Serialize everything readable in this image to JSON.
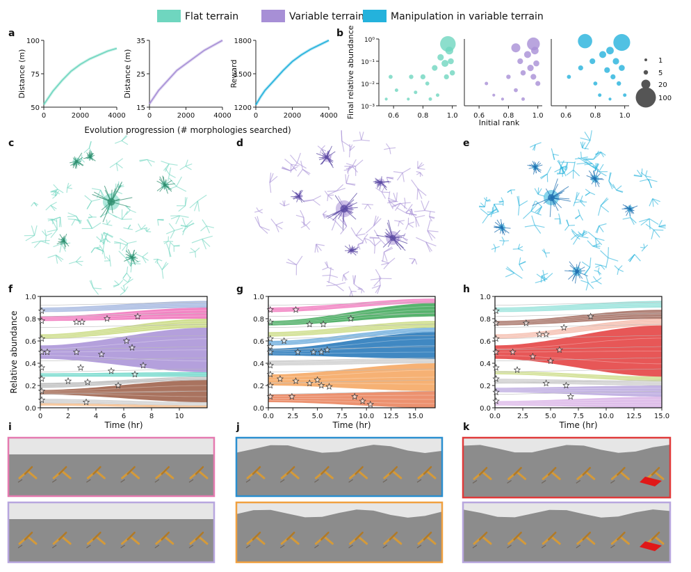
{
  "legend": {
    "items": [
      {
        "label": "Flat terrain",
        "color": "#6fd6bf"
      },
      {
        "label": "Variable terrain",
        "color": "#a78fd6"
      },
      {
        "label": "Manipulation in variable terrain",
        "color": "#24b2dc"
      }
    ]
  },
  "panel_letters": {
    "a": "a",
    "b": "b",
    "c": "c",
    "d": "d",
    "e": "e",
    "f": "f",
    "g": "g",
    "h": "h",
    "i": "i",
    "j": "j",
    "k": "k"
  },
  "colors": {
    "flat": "#6fd6bf",
    "variable": "#a78fd6",
    "manip": "#24b2dc",
    "tree_flat": "#2f8f6f",
    "tree_var": "#5b4aa3",
    "tree_manip": "#1f6fb0",
    "floor": "#8c8c8c",
    "sky": "#e6e6e6",
    "creature": "#d49a3a"
  },
  "chart_data": [
    {
      "id": "a1",
      "type": "line",
      "ylabel": "Distance (m)",
      "xlabel": "",
      "ylim": [
        50,
        100
      ],
      "yticks": [
        "50",
        "75",
        "100"
      ],
      "xticks": [
        "0",
        "2000",
        "4000"
      ],
      "xlim": [
        0,
        4000
      ],
      "x": [
        0,
        250,
        500,
        1000,
        1500,
        2000,
        2500,
        3000,
        3500,
        4000
      ],
      "values": [
        52,
        57,
        62,
        70,
        77,
        82,
        86,
        89,
        92,
        94
      ]
    },
    {
      "id": "a2",
      "type": "line",
      "ylabel": "Distance (m)",
      "xlabel": "",
      "ylim": [
        15,
        35
      ],
      "yticks": [
        "15",
        "25",
        "35"
      ],
      "xticks": [
        "0",
        "2000",
        "4000"
      ],
      "xlim": [
        0,
        4000
      ],
      "x": [
        0,
        250,
        500,
        1000,
        1500,
        2000,
        2500,
        3000,
        3500,
        4000
      ],
      "values": [
        16,
        18,
        20,
        23,
        26,
        28,
        30,
        32,
        33.5,
        35
      ]
    },
    {
      "id": "a3",
      "type": "line",
      "ylabel": "Reward",
      "xlabel": "",
      "ylim": [
        1200,
        1800
      ],
      "yticks": [
        "1200",
        "1500",
        "1800"
      ],
      "xticks": [
        "0",
        "2000",
        "4000"
      ],
      "xlim": [
        0,
        4000
      ],
      "x": [
        0,
        250,
        500,
        1000,
        1500,
        2000,
        2500,
        3000,
        3500,
        4000
      ],
      "values": [
        1220,
        1290,
        1350,
        1440,
        1530,
        1610,
        1670,
        1720,
        1760,
        1800
      ]
    },
    {
      "id": "a_xlabel",
      "type": "label",
      "text": "Evolution progression (# morphologies searched)"
    },
    {
      "id": "b",
      "type": "scatter",
      "ylabel": "Final relative abundance",
      "xlabel": "Initial rank",
      "xticks": [
        "0.6",
        "0.8",
        "1.0"
      ],
      "yticks": [
        "10⁰",
        "10⁻¹",
        "10⁻²",
        "10⁻³"
      ],
      "xlim": [
        0.5,
        1.03
      ],
      "ylim_log": [
        -3,
        0
      ],
      "size_legend": {
        "values": [
          1,
          5,
          20,
          100
        ],
        "labels": [
          "1",
          "5",
          "20",
          "100"
        ]
      },
      "series": [
        {
          "name": "Flat terrain",
          "points": [
            [
              0.97,
              0.6,
              60
            ],
            [
              0.58,
              0.02,
              4
            ],
            [
              0.62,
              0.005,
              3
            ],
            [
              0.72,
              0.02,
              5
            ],
            [
              0.75,
              0.004,
              3
            ],
            [
              0.8,
              0.02,
              6
            ],
            [
              0.83,
              0.01,
              4
            ],
            [
              0.88,
              0.05,
              8
            ],
            [
              0.9,
              0.003,
              3
            ],
            [
              0.92,
              0.15,
              10
            ],
            [
              0.95,
              0.08,
              12
            ],
            [
              0.96,
              0.02,
              6
            ],
            [
              0.98,
              0.3,
              15
            ],
            [
              0.99,
              0.1,
              9
            ],
            [
              1.0,
              0.03,
              7
            ],
            [
              0.55,
              0.002,
              2
            ],
            [
              0.7,
              0.002,
              2
            ],
            [
              0.85,
              0.002,
              3
            ]
          ]
        },
        {
          "name": "Variable terrain",
          "points": [
            [
              0.97,
              0.6,
              40
            ],
            [
              0.85,
              0.4,
              20
            ],
            [
              0.65,
              0.01,
              3
            ],
            [
              0.7,
              0.003,
              2
            ],
            [
              0.8,
              0.02,
              5
            ],
            [
              0.85,
              0.005,
              4
            ],
            [
              0.88,
              0.1,
              8
            ],
            [
              0.9,
              0.03,
              7
            ],
            [
              0.93,
              0.2,
              12
            ],
            [
              0.95,
              0.05,
              10
            ],
            [
              0.97,
              0.02,
              8
            ],
            [
              0.98,
              0.3,
              14
            ],
            [
              0.99,
              0.08,
              9
            ],
            [
              1.0,
              0.01,
              6
            ],
            [
              0.76,
              0.002,
              2
            ],
            [
              0.9,
              0.002,
              3
            ]
          ]
        },
        {
          "name": "Manipulation in variable terrain",
          "points": [
            [
              0.73,
              0.8,
              50
            ],
            [
              0.98,
              0.7,
              70
            ],
            [
              0.62,
              0.02,
              4
            ],
            [
              0.7,
              0.05,
              6
            ],
            [
              0.78,
              0.1,
              8
            ],
            [
              0.8,
              0.01,
              4
            ],
            [
              0.85,
              0.2,
              12
            ],
            [
              0.88,
              0.04,
              8
            ],
            [
              0.9,
              0.3,
              14
            ],
            [
              0.92,
              0.02,
              6
            ],
            [
              0.94,
              0.1,
              10
            ],
            [
              0.96,
              0.01,
              5
            ],
            [
              0.98,
              0.05,
              9
            ],
            [
              1.0,
              0.003,
              3
            ],
            [
              0.83,
              0.003,
              3
            ],
            [
              0.9,
              0.002,
              2
            ]
          ]
        }
      ]
    },
    {
      "id": "f",
      "type": "area",
      "xlabel": "Time (hr)",
      "ylabel": "Relative abundance",
      "ylim": [
        0,
        1
      ],
      "xlim": [
        0,
        12
      ],
      "xticks": [
        "0",
        "2",
        "4",
        "6",
        "8",
        "10"
      ],
      "xtick_vals": [
        0,
        2,
        4,
        6,
        8,
        10
      ],
      "yticks": [
        "0.0",
        "0.2",
        "0.4",
        "0.6",
        "0.8",
        "1.0"
      ],
      "bands": [
        {
          "color": "#f5a35c",
          "start": [
            0.02,
            0.04
          ],
          "end": [
            0.0,
            0.02
          ]
        },
        {
          "color": "#c9c9c9",
          "start": [
            0.04,
            0.08
          ],
          "end": [
            0.02,
            0.05
          ]
        },
        {
          "color": "#9a5a43",
          "start": [
            0.12,
            0.16
          ],
          "end": [
            0.05,
            0.25
          ]
        },
        {
          "color": "#b9b9b9",
          "start": [
            0.18,
            0.22
          ],
          "end": [
            0.25,
            0.28
          ]
        },
        {
          "color": "#5fd3c4",
          "start": [
            0.28,
            0.31
          ],
          "end": [
            0.28,
            0.32
          ]
        },
        {
          "color": "#a78fd6",
          "start": [
            0.44,
            0.56
          ],
          "end": [
            0.32,
            0.72
          ]
        },
        {
          "color": "#c8d97c",
          "start": [
            0.62,
            0.66
          ],
          "end": [
            0.72,
            0.8
          ]
        },
        {
          "color": "#f06fb8",
          "start": [
            0.78,
            0.82
          ],
          "end": [
            0.8,
            0.9
          ]
        },
        {
          "color": "#9fb3de",
          "start": [
            0.86,
            0.9
          ],
          "end": [
            0.9,
            0.96
          ]
        }
      ],
      "stars": [
        [
          0.1,
          0.87
        ],
        [
          0.1,
          0.78
        ],
        [
          0.1,
          0.62
        ],
        [
          0.1,
          0.5
        ],
        [
          0.1,
          0.36
        ],
        [
          0.1,
          0.26
        ],
        [
          0.1,
          0.15
        ],
        [
          0.1,
          0.07
        ],
        [
          0.5,
          0.5
        ],
        [
          2.6,
          0.77
        ],
        [
          3.0,
          0.77
        ],
        [
          4.8,
          0.8
        ],
        [
          7.0,
          0.82
        ],
        [
          2.6,
          0.5
        ],
        [
          4.4,
          0.48
        ],
        [
          6.2,
          0.6
        ],
        [
          6.6,
          0.54
        ],
        [
          7.4,
          0.38
        ],
        [
          2.9,
          0.36
        ],
        [
          5.1,
          0.33
        ],
        [
          6.8,
          0.3
        ],
        [
          2.0,
          0.24
        ],
        [
          3.4,
          0.23
        ],
        [
          5.6,
          0.2
        ],
        [
          3.3,
          0.05
        ]
      ]
    },
    {
      "id": "g",
      "type": "area",
      "xlabel": "Time (hr)",
      "ylabel": "",
      "ylim": [
        0,
        1
      ],
      "xlim": [
        0,
        17
      ],
      "xticks": [
        "0.0",
        "2.5",
        "5.0",
        "7.5",
        "10.0",
        "12.5",
        "15.0"
      ],
      "xtick_vals": [
        0,
        2.5,
        5,
        7.5,
        10,
        12.5,
        15
      ],
      "yticks": [
        "0.0",
        "0.2",
        "0.4",
        "0.6",
        "0.8",
        "1.0"
      ],
      "bands": [
        {
          "color": "#e97e56",
          "start": [
            0.05,
            0.12
          ],
          "end": [
            0.0,
            0.15
          ]
        },
        {
          "color": "#f5a35c",
          "start": [
            0.2,
            0.3
          ],
          "end": [
            0.15,
            0.4
          ]
        },
        {
          "color": "#c9c9c9",
          "start": [
            0.38,
            0.42
          ],
          "end": [
            0.4,
            0.44
          ]
        },
        {
          "color": "#1f73b7",
          "start": [
            0.47,
            0.53
          ],
          "end": [
            0.44,
            0.68
          ]
        },
        {
          "color": "#5fa4d9",
          "start": [
            0.56,
            0.6
          ],
          "end": [
            0.68,
            0.72
          ]
        },
        {
          "color": "#c8d97c",
          "start": [
            0.64,
            0.68
          ],
          "end": [
            0.72,
            0.78
          ]
        },
        {
          "color": "#3aa655",
          "start": [
            0.74,
            0.78
          ],
          "end": [
            0.82,
            0.94
          ]
        },
        {
          "color": "#f06fb8",
          "start": [
            0.86,
            0.9
          ],
          "end": [
            0.94,
            0.98
          ]
        }
      ],
      "stars": [
        [
          0.2,
          0.88
        ],
        [
          0.2,
          0.77
        ],
        [
          0.2,
          0.62
        ],
        [
          0.2,
          0.55
        ],
        [
          0.2,
          0.5
        ],
        [
          0.2,
          0.38
        ],
        [
          0.2,
          0.3
        ],
        [
          0.2,
          0.2
        ],
        [
          0.2,
          0.1
        ],
        [
          2.8,
          0.88
        ],
        [
          4.2,
          0.75
        ],
        [
          5.6,
          0.75
        ],
        [
          8.4,
          0.8
        ],
        [
          1.6,
          0.6
        ],
        [
          3.0,
          0.5
        ],
        [
          4.6,
          0.5
        ],
        [
          5.4,
          0.5
        ],
        [
          6.0,
          0.52
        ],
        [
          1.2,
          0.26
        ],
        [
          2.8,
          0.24
        ],
        [
          4.2,
          0.22
        ],
        [
          5.0,
          0.25
        ],
        [
          5.4,
          0.2
        ],
        [
          6.2,
          0.19
        ],
        [
          2.4,
          0.1
        ],
        [
          8.8,
          0.1
        ],
        [
          9.6,
          0.06
        ],
        [
          10.4,
          0.03
        ]
      ]
    },
    {
      "id": "h",
      "type": "area",
      "xlabel": "Time (hr)",
      "ylabel": "",
      "ylim": [
        0,
        1
      ],
      "xlim": [
        0,
        15
      ],
      "xticks": [
        "0.0",
        "2.5",
        "5.0",
        "7.5",
        "10.0",
        "12.5",
        "15.0"
      ],
      "xtick_vals": [
        0,
        2.5,
        5,
        7.5,
        10,
        12.5,
        15
      ],
      "yticks": [
        "0.0",
        "0.2",
        "0.4",
        "0.6",
        "0.8",
        "1.0"
      ],
      "bands": [
        {
          "color": "#d9b3e6",
          "start": [
            0.02,
            0.06
          ],
          "end": [
            0.0,
            0.1
          ]
        },
        {
          "color": "#b9a6de",
          "start": [
            0.14,
            0.18
          ],
          "end": [
            0.1,
            0.2
          ]
        },
        {
          "color": "#c9c9c9",
          "start": [
            0.22,
            0.26
          ],
          "end": [
            0.2,
            0.24
          ]
        },
        {
          "color": "#c8d97c",
          "start": [
            0.3,
            0.33
          ],
          "end": [
            0.24,
            0.28
          ]
        },
        {
          "color": "#e33a3a",
          "start": [
            0.44,
            0.56
          ],
          "end": [
            0.28,
            0.74
          ]
        },
        {
          "color": "#f5b8a8",
          "start": [
            0.62,
            0.66
          ],
          "end": [
            0.74,
            0.8
          ]
        },
        {
          "color": "#a0675a",
          "start": [
            0.74,
            0.78
          ],
          "end": [
            0.8,
            0.88
          ]
        },
        {
          "color": "#8fe0d8",
          "start": [
            0.86,
            0.9
          ],
          "end": [
            0.9,
            0.96
          ]
        }
      ],
      "stars": [
        [
          0.1,
          0.87
        ],
        [
          0.1,
          0.76
        ],
        [
          0.1,
          0.62
        ],
        [
          0.1,
          0.5
        ],
        [
          0.1,
          0.36
        ],
        [
          0.1,
          0.26
        ],
        [
          0.1,
          0.14
        ],
        [
          0.1,
          0.06
        ],
        [
          2.8,
          0.76
        ],
        [
          4.0,
          0.66
        ],
        [
          4.6,
          0.66
        ],
        [
          6.2,
          0.72
        ],
        [
          8.6,
          0.82
        ],
        [
          1.6,
          0.5
        ],
        [
          3.4,
          0.46
        ],
        [
          5.0,
          0.42
        ],
        [
          5.8,
          0.52
        ],
        [
          2.0,
          0.34
        ],
        [
          4.6,
          0.22
        ],
        [
          6.4,
          0.2
        ],
        [
          6.8,
          0.1
        ]
      ]
    }
  ]
}
